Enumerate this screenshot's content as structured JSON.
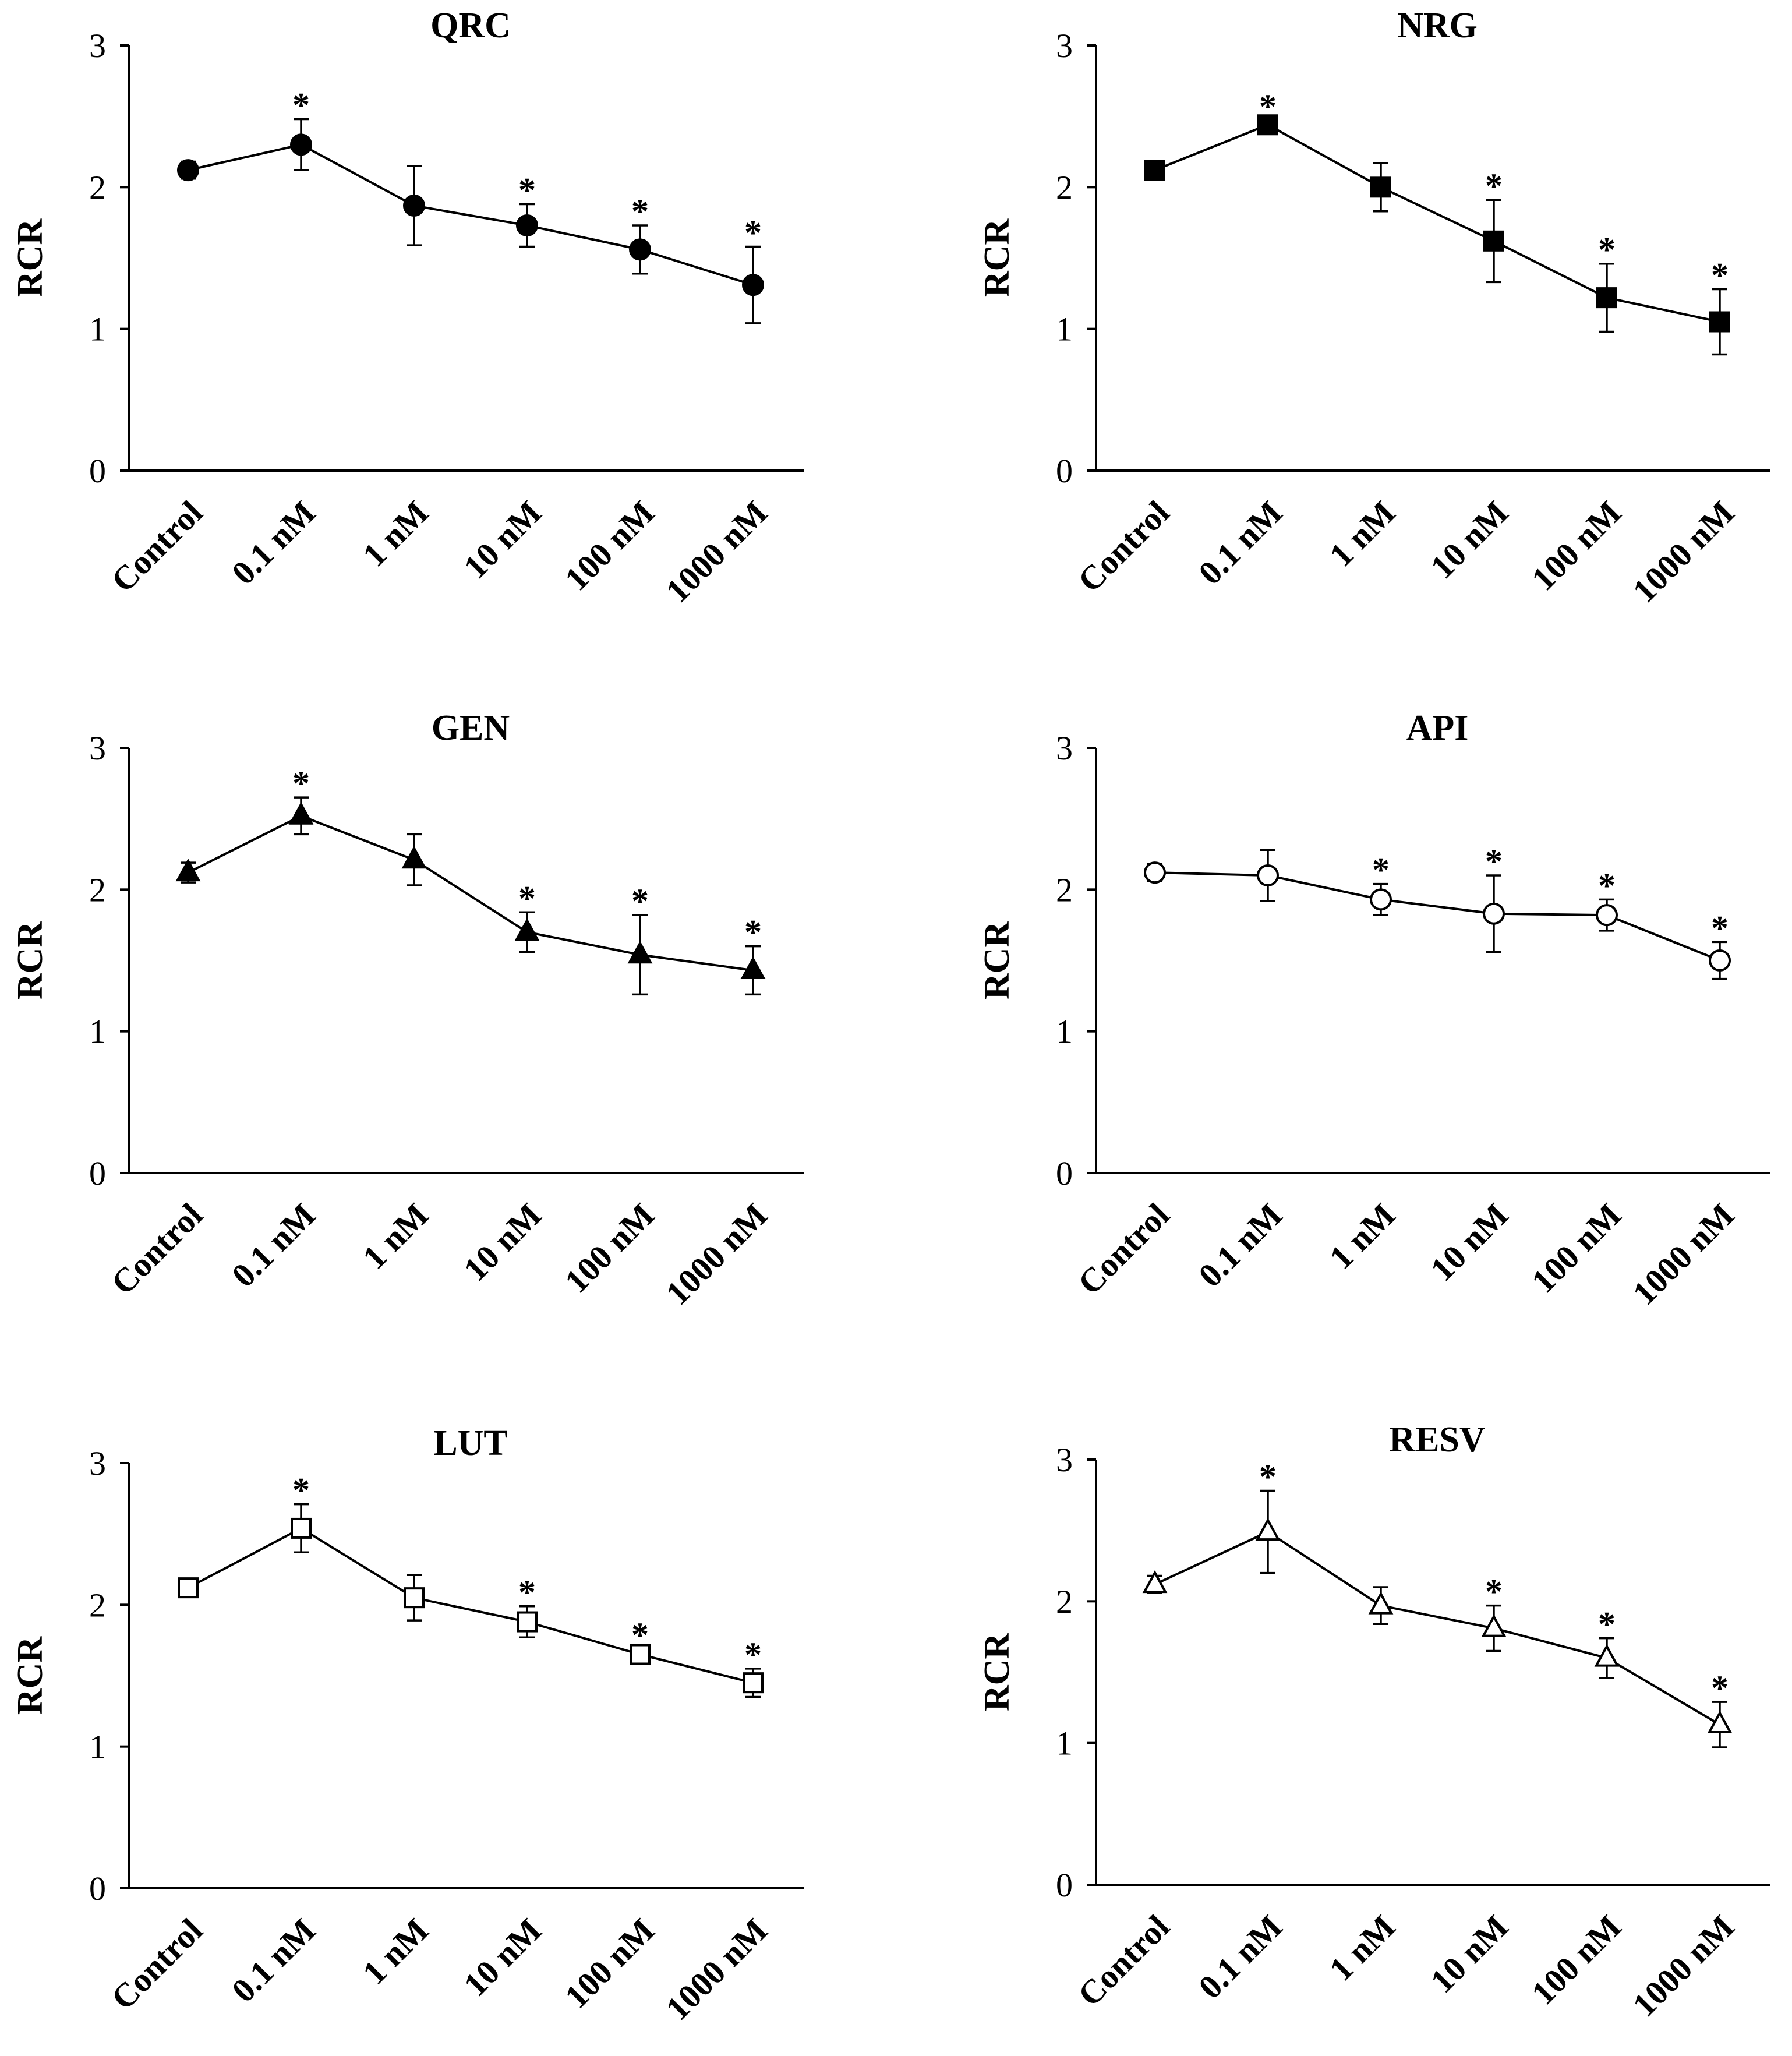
{
  "chart_data": [
    {
      "type": "line",
      "title": "QRC",
      "ylabel": "RCR",
      "xlabel": "",
      "categories": [
        "Control",
        "0.1 nM",
        "1 nM",
        "10 nM",
        "100 nM",
        "1000 nM"
      ],
      "values": [
        2.12,
        2.3,
        1.87,
        1.73,
        1.56,
        1.31
      ],
      "errors": [
        0.06,
        0.18,
        0.28,
        0.15,
        0.17,
        0.27
      ],
      "significant": [
        false,
        true,
        false,
        true,
        true,
        true
      ],
      "significance_symbol": "*",
      "marker": "filled-circle",
      "ylim": [
        0,
        3
      ],
      "yticks": [
        "0",
        "1",
        "2",
        "3"
      ]
    },
    {
      "type": "line",
      "title": "NRG",
      "ylabel": "RCR",
      "xlabel": "",
      "categories": [
        "Control",
        "0.1 nM",
        "1 nM",
        "10 nM",
        "100 nM",
        "1000 nM"
      ],
      "values": [
        2.12,
        2.44,
        2.0,
        1.62,
        1.22,
        1.05
      ],
      "errors": [
        0.03,
        0.03,
        0.17,
        0.29,
        0.24,
        0.23
      ],
      "significant": [
        false,
        true,
        false,
        true,
        true,
        true
      ],
      "significance_symbol": "*",
      "marker": "filled-square",
      "ylim": [
        0,
        3
      ],
      "yticks": [
        "0",
        "1",
        "2",
        "3"
      ]
    },
    {
      "type": "line",
      "title": "GEN",
      "ylabel": "RCR",
      "xlabel": "",
      "categories": [
        "Control",
        "0.1 nM",
        "1 nM",
        "10 nM",
        "100 nM",
        "1000 nM"
      ],
      "values": [
        2.12,
        2.52,
        2.21,
        1.7,
        1.54,
        1.43
      ],
      "errors": [
        0.07,
        0.13,
        0.18,
        0.14,
        0.28,
        0.17
      ],
      "significant": [
        false,
        true,
        false,
        true,
        true,
        true
      ],
      "significance_symbol": "*",
      "marker": "filled-triangle",
      "ylim": [
        0,
        3
      ],
      "yticks": [
        "0",
        "1",
        "2",
        "3"
      ]
    },
    {
      "type": "line",
      "title": "API",
      "ylabel": "RCR",
      "xlabel": "",
      "categories": [
        "Control",
        "0.1 nM",
        "1 nM",
        "10 nM",
        "100 nM",
        "1000 nM"
      ],
      "values": [
        2.12,
        2.1,
        1.93,
        1.83,
        1.82,
        1.5
      ],
      "errors": [
        0.06,
        0.18,
        0.11,
        0.27,
        0.11,
        0.13
      ],
      "significant": [
        false,
        false,
        true,
        true,
        true,
        true
      ],
      "significance_symbol": "*",
      "marker": "open-circle",
      "ylim": [
        0,
        3
      ],
      "yticks": [
        "0",
        "1",
        "2",
        "3"
      ]
    },
    {
      "type": "line",
      "title": "LUT",
      "ylabel": "RCR",
      "xlabel": "",
      "categories": [
        "Control",
        "0.1 nM",
        "1 nM",
        "10 nM",
        "100 nM",
        "1000 nM"
      ],
      "values": [
        2.12,
        2.54,
        2.05,
        1.88,
        1.65,
        1.45
      ],
      "errors": [
        0.03,
        0.17,
        0.16,
        0.11,
        0.04,
        0.1
      ],
      "significant": [
        false,
        true,
        false,
        true,
        true,
        true
      ],
      "significance_symbol": "*",
      "marker": "open-square",
      "ylim": [
        0,
        3
      ],
      "yticks": [
        "0",
        "1",
        "2",
        "3"
      ]
    },
    {
      "type": "line",
      "title": "RESV",
      "ylabel": "RCR",
      "xlabel": "",
      "categories": [
        "Control",
        "0.1 nM",
        "1 nM",
        "10 nM",
        "100 nM",
        "1000 nM"
      ],
      "values": [
        2.12,
        2.49,
        1.97,
        1.81,
        1.6,
        1.13
      ],
      "errors": [
        0.06,
        0.29,
        0.13,
        0.16,
        0.14,
        0.16
      ],
      "significant": [
        false,
        true,
        false,
        true,
        true,
        true
      ],
      "significance_symbol": "*",
      "marker": "open-triangle",
      "ylim": [
        0,
        3
      ],
      "yticks": [
        "0",
        "1",
        "2",
        "3"
      ]
    }
  ]
}
